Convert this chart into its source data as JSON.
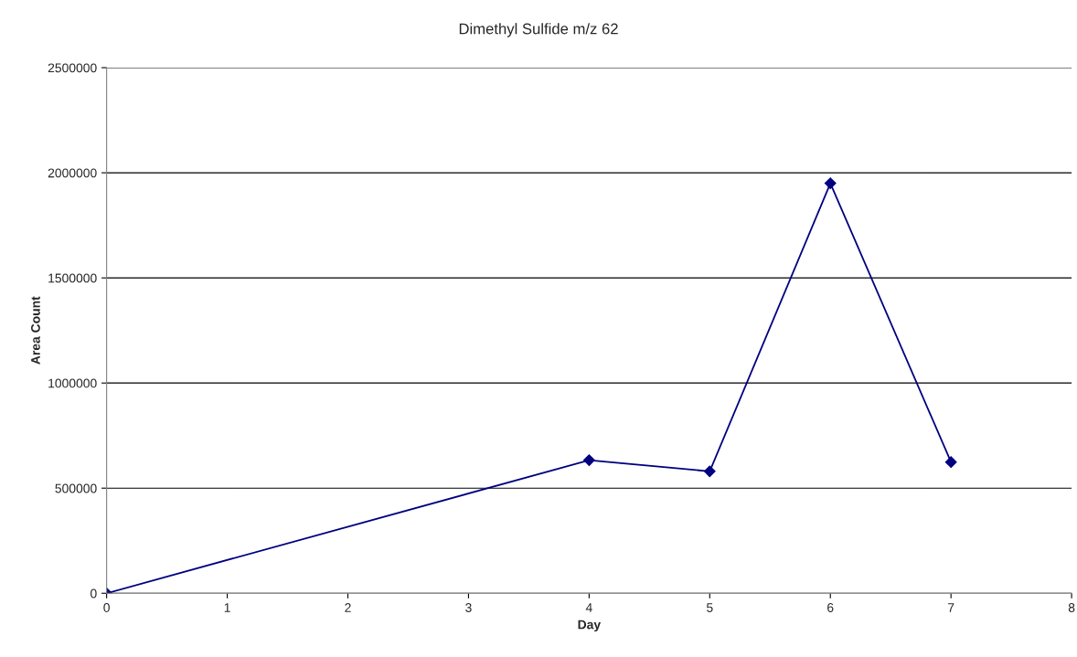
{
  "chart_data": {
    "type": "line",
    "title": "Dimethyl Sulfide m/z 62",
    "xlabel": "Day",
    "ylabel": "Area Count",
    "x": [
      0,
      4,
      5,
      6,
      7
    ],
    "series": [
      {
        "color": "#000080",
        "values": [
          0,
          633000,
          580000,
          1950000,
          624000
        ]
      }
    ],
    "xlim": [
      0,
      8
    ],
    "xticks": [
      0,
      1,
      2,
      3,
      4,
      5,
      6,
      7,
      8
    ],
    "ylim": [
      0,
      2500000
    ],
    "yticks": [
      0,
      500000,
      1000000,
      1500000,
      2000000,
      2500000
    ],
    "grid": "y",
    "marker": "diamond",
    "line_style": "solid",
    "legend": false
  }
}
